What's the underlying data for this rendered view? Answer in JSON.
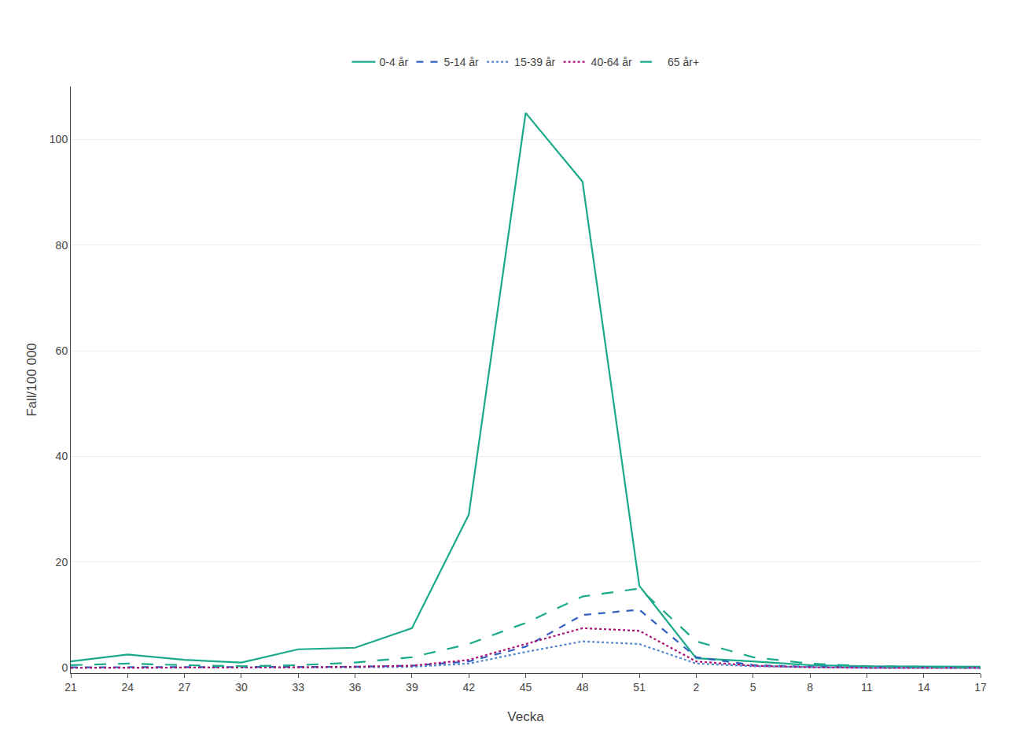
{
  "chart_data": {
    "type": "line",
    "xlabel": "Vecka",
    "ylabel": "Fall/100 000",
    "categories": [
      "21",
      "24",
      "27",
      "30",
      "33",
      "36",
      "39",
      "42",
      "45",
      "48",
      "51",
      "2",
      "5",
      "8",
      "11",
      "14",
      "17"
    ],
    "series": [
      {
        "name": "0-4 år",
        "color": "#1aaa8a",
        "line_style": "solid",
        "values": [
          1.2,
          2.5,
          1.5,
          1.0,
          3.5,
          3.8,
          7.5,
          29.0,
          105.0,
          92.0,
          15.5,
          1.8,
          1.2,
          0.5,
          0.3,
          0.2,
          0.2
        ]
      },
      {
        "name": "5-14 år",
        "color": "#3060c0",
        "line_style": "dashed",
        "values": [
          0.1,
          0.1,
          0.1,
          0.1,
          0.2,
          0.2,
          0.4,
          1.2,
          4.0,
          10.0,
          11.0,
          2.0,
          0.5,
          0.2,
          0.1,
          0.1,
          0.0
        ]
      },
      {
        "name": "15-39 år",
        "color": "#5588cc",
        "line_style": "dotted",
        "values": [
          0.0,
          0.0,
          0.0,
          0.0,
          0.1,
          0.1,
          0.2,
          0.8,
          3.0,
          5.0,
          4.5,
          0.8,
          0.3,
          0.1,
          0.0,
          0.0,
          0.0
        ]
      },
      {
        "name": "40-64 år",
        "color": "#aa1177",
        "line_style": "dotted",
        "values": [
          0.0,
          0.0,
          0.0,
          0.0,
          0.1,
          0.2,
          0.4,
          1.5,
          4.5,
          7.5,
          7.0,
          1.2,
          0.4,
          0.1,
          0.0,
          0.0,
          0.0
        ]
      },
      {
        "name": "65 år+",
        "color": "#1aaa8a",
        "line_style": "longdash",
        "values": [
          0.5,
          0.8,
          0.5,
          0.3,
          0.5,
          1.0,
          2.0,
          4.5,
          8.5,
          13.5,
          15.0,
          5.0,
          2.0,
          0.8,
          0.3,
          0.2,
          0.1
        ]
      }
    ],
    "ylim": [
      -1,
      110
    ],
    "yticks": [
      0,
      20,
      40,
      60,
      80,
      100
    ],
    "grid": true,
    "legend": "top"
  }
}
